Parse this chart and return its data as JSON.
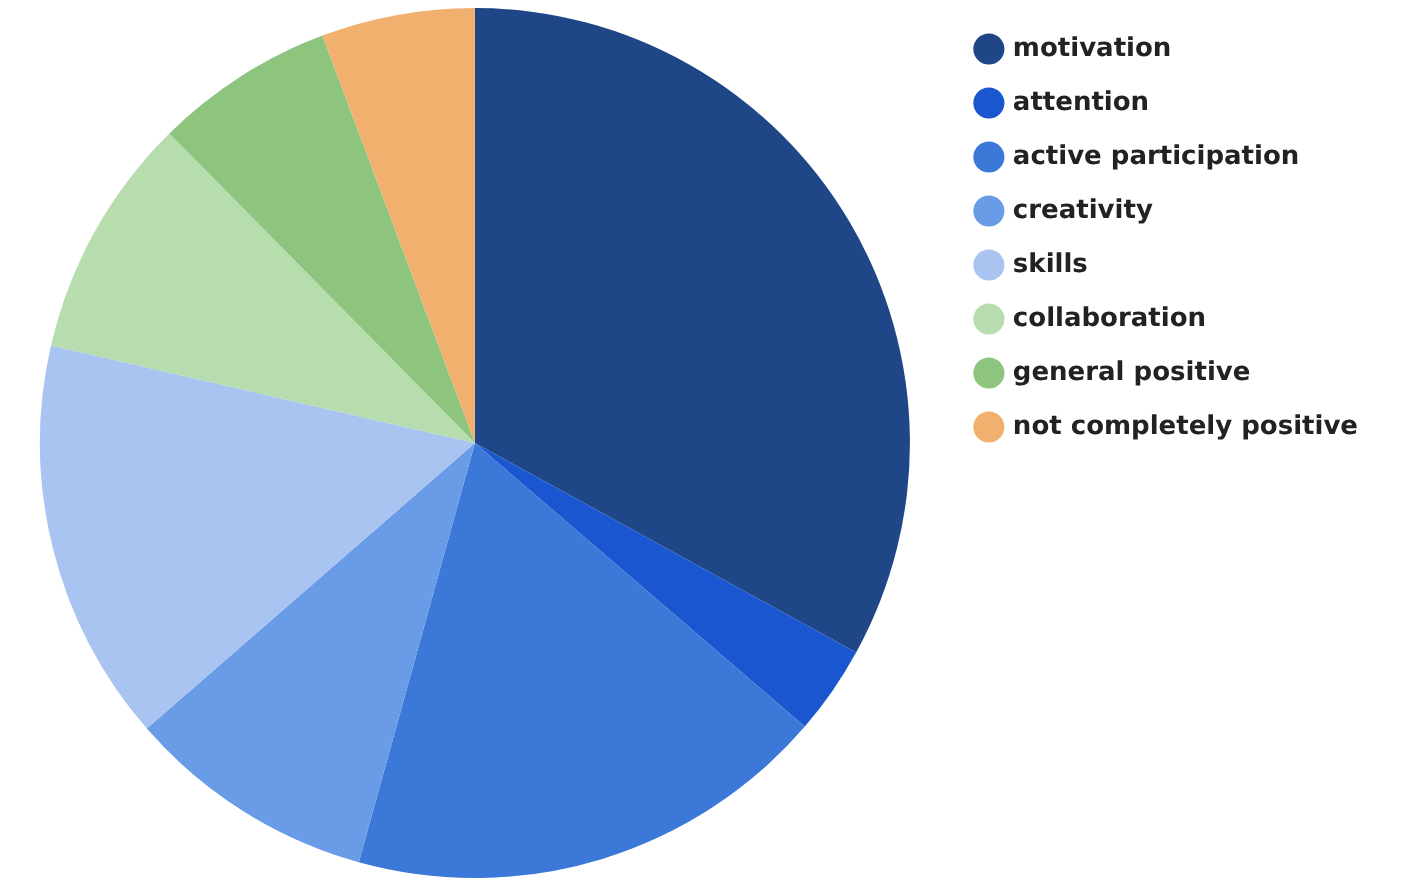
{
  "chart_data": {
    "type": "pie",
    "categories": [
      "motivation",
      "attention",
      "active participation",
      "creativity",
      "skills",
      "collaboration",
      "general positive",
      "not completely positive"
    ],
    "values": [
      33,
      3.3,
      18,
      9.3,
      15,
      9,
      6.7,
      5.7
    ],
    "colors": [
      "#1f4788",
      "#1a56cf",
      "#3b78d8",
      "#6a9be6",
      "#a9c4f0",
      "#b7dcae",
      "#8dc47e",
      "#f2b06e"
    ],
    "legend": "top right"
  }
}
